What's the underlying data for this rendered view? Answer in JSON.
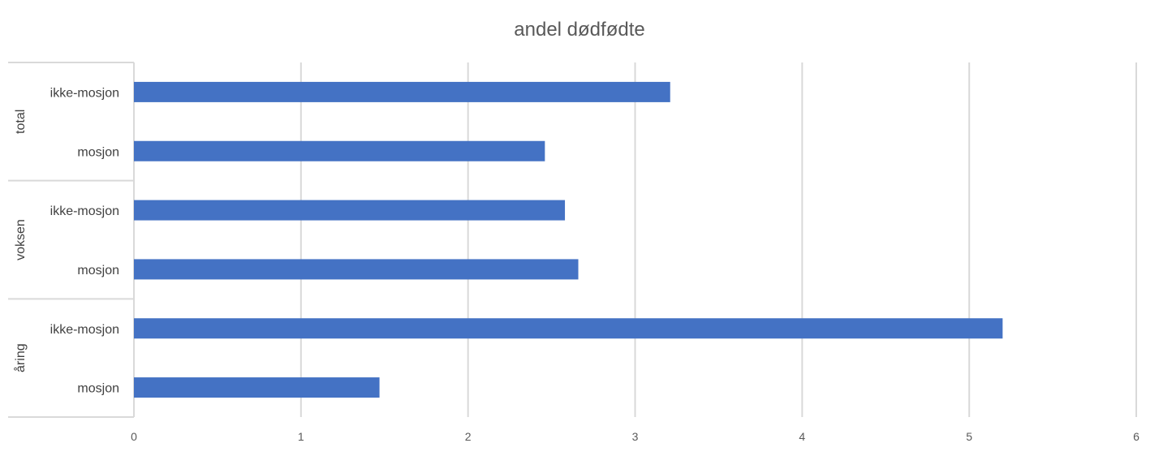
{
  "chart_data": {
    "type": "bar",
    "orientation": "horizontal",
    "title": "andel dødfødte",
    "xlabel": "",
    "ylabel": "",
    "xlim": [
      0,
      6
    ],
    "x_ticks": [
      "0",
      "1",
      "2",
      "3",
      "4",
      "5",
      "6"
    ],
    "grid": true,
    "legend": "none",
    "bar_color": "#4472C4",
    "groups": [
      {
        "name": "total",
        "bars": [
          {
            "category": "ikke-mosjon",
            "value": 3.21
          },
          {
            "category": "mosjon",
            "value": 2.46
          }
        ]
      },
      {
        "name": "voksen",
        "bars": [
          {
            "category": "ikke-mosjon",
            "value": 2.58
          },
          {
            "category": "mosjon",
            "value": 2.66
          }
        ]
      },
      {
        "name": "åring",
        "bars": [
          {
            "category": "ikke-mosjon",
            "value": 5.2
          },
          {
            "category": "mosjon",
            "value": 1.47
          }
        ]
      }
    ]
  }
}
